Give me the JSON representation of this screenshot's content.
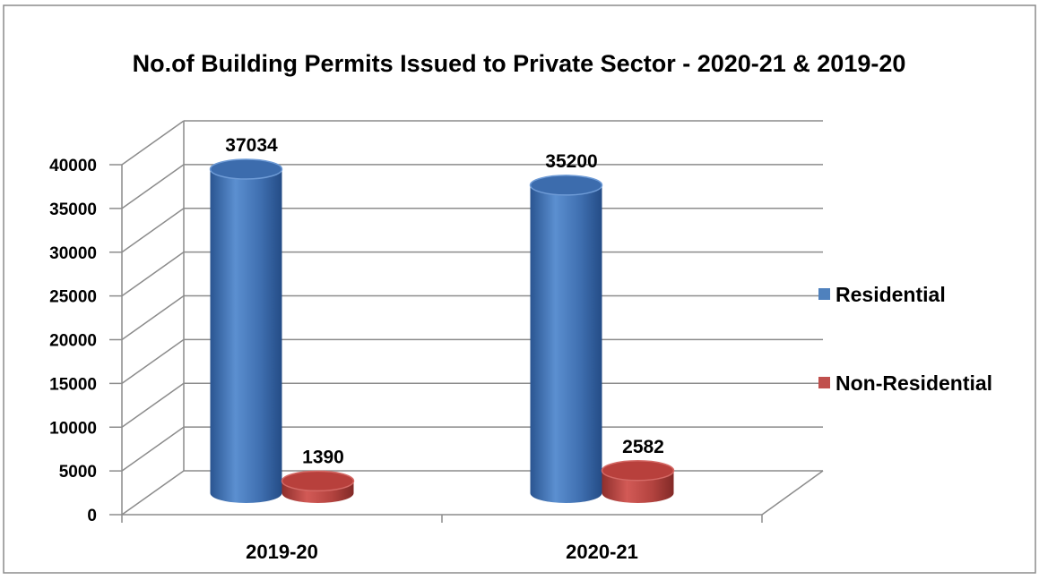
{
  "chart_data": {
    "type": "bar",
    "title": "No.of Building Permits Issued to Private Sector - 2020-21 & 2019-20",
    "xlabel": "",
    "ylabel": "",
    "categories": [
      "2019-20",
      "2020-21"
    ],
    "series": [
      {
        "name": "Residential",
        "values": [
          37034,
          35200
        ],
        "color": "#4f81bd"
      },
      {
        "name": "Non-Residential",
        "values": [
          1390,
          2582
        ],
        "color": "#c0504d"
      }
    ],
    "ylim": [
      0,
      40000
    ],
    "yticks": [
      "0",
      "5000",
      "10000",
      "15000",
      "20000",
      "25000",
      "30000",
      "35000",
      "40000"
    ],
    "data_labels": [
      "37034",
      "1390",
      "35200",
      "2582"
    ],
    "grid": true,
    "legend_position": "right",
    "style": "3d-cylinder"
  }
}
